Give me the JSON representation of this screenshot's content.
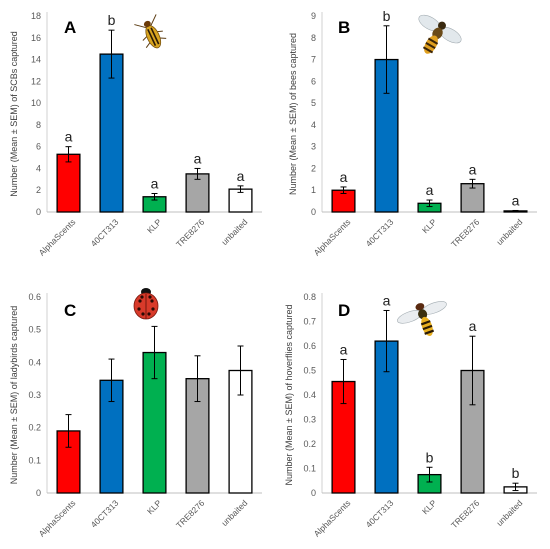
{
  "chart_data": [
    {
      "type": "bar",
      "panel_label": "A",
      "ylabel": "Number (Mean ± SEM) of SCBs captured",
      "categories": [
        "AlphaScents",
        "40CT313",
        "KLP",
        "TRE8276",
        "unbaited"
      ],
      "values": [
        5.3,
        14.5,
        1.4,
        3.5,
        2.1
      ],
      "errors": [
        0.7,
        2.2,
        0.3,
        0.5,
        0.3
      ],
      "letters": [
        "a",
        "b",
        "a",
        "a",
        "a"
      ],
      "colors": [
        "#ff0000",
        "#0070c0",
        "#00b050",
        "#a6a6a6",
        "#ffffff"
      ],
      "ylim": [
        0,
        18
      ],
      "yticks": [
        "0",
        "2",
        "4",
        "6",
        "8",
        "10",
        "12",
        "14",
        "16",
        "18"
      ],
      "icon": "cucumber-beetle-icon"
    },
    {
      "type": "bar",
      "panel_label": "B",
      "ylabel": "Number (Mean ± SEM) of bees captured",
      "categories": [
        "AlphaScents",
        "40CT313",
        "KLP",
        "TRE8276",
        "unbaited"
      ],
      "values": [
        1.0,
        7.0,
        0.4,
        1.3,
        0.05
      ],
      "errors": [
        0.15,
        1.55,
        0.15,
        0.2,
        0.02
      ],
      "letters": [
        "a",
        "b",
        "a",
        "a",
        "a"
      ],
      "colors": [
        "#ff0000",
        "#0070c0",
        "#00b050",
        "#a6a6a6",
        "#ffffff"
      ],
      "ylim": [
        0,
        9
      ],
      "yticks": [
        "0",
        "1",
        "2",
        "3",
        "4",
        "5",
        "6",
        "7",
        "8",
        "9"
      ],
      "icon": "bee-icon"
    },
    {
      "type": "bar",
      "panel_label": "C",
      "ylabel": "Number (Mean ± SEM) of ladybirds captured",
      "categories": [
        "AlphaScents",
        "40CT313",
        "KLP",
        "TRE8276",
        "unbaited"
      ],
      "values": [
        0.19,
        0.345,
        0.43,
        0.35,
        0.375
      ],
      "errors": [
        0.05,
        0.065,
        0.08,
        0.07,
        0.075
      ],
      "letters": [
        "",
        "",
        "",
        "",
        ""
      ],
      "colors": [
        "#ff0000",
        "#0070c0",
        "#00b050",
        "#a6a6a6",
        "#ffffff"
      ],
      "ylim": [
        0,
        0.6
      ],
      "yticks": [
        "0",
        "0.1",
        "0.2",
        "0.3",
        "0.4",
        "0.5",
        "0.6"
      ],
      "icon": "ladybird-icon"
    },
    {
      "type": "bar",
      "panel_label": "D",
      "ylabel": "Number (Mean ± SEM) of hoverflies captured",
      "categories": [
        "AlphaScents",
        "40CT313",
        "KLP",
        "TRE8276",
        "unbaited"
      ],
      "values": [
        0.455,
        0.62,
        0.075,
        0.5,
        0.025
      ],
      "errors": [
        0.09,
        0.125,
        0.03,
        0.14,
        0.015
      ],
      "letters": [
        "a",
        "a",
        "b",
        "a",
        "b"
      ],
      "colors": [
        "#ff0000",
        "#0070c0",
        "#00b050",
        "#a6a6a6",
        "#ffffff"
      ],
      "ylim": [
        0,
        0.8
      ],
      "yticks": [
        "0",
        "0.1",
        "0.2",
        "0.3",
        "0.4",
        "0.5",
        "0.6",
        "0.7",
        "0.8"
      ],
      "icon": "hoverfly-icon"
    }
  ]
}
